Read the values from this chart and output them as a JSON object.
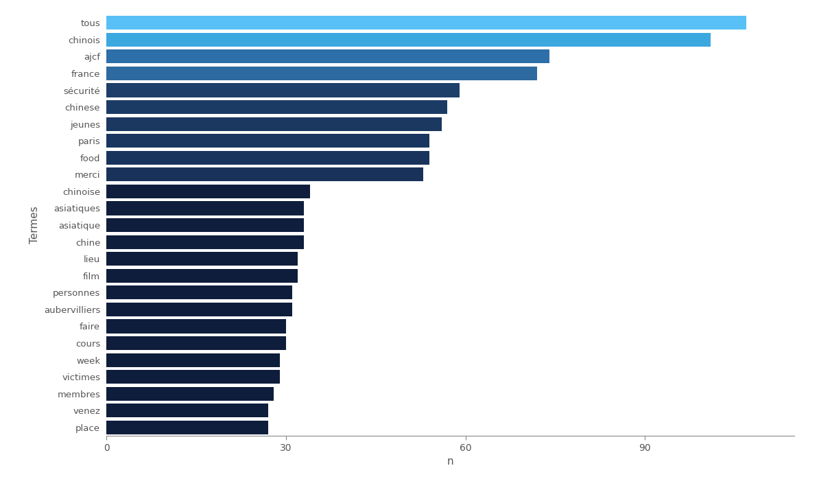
{
  "categories": [
    "tous",
    "chinois",
    "ajcf",
    "france",
    "sécurité",
    "chinese",
    "jeunes",
    "paris",
    "food",
    "merci",
    "chinoise",
    "asiatiques",
    "asiatique",
    "chine",
    "lieu",
    "film",
    "personnes",
    "aubervilliers",
    "faire",
    "cours",
    "week",
    "victimes",
    "membres",
    "venez",
    "place"
  ],
  "values": [
    107,
    101,
    74,
    72,
    59,
    57,
    56,
    54,
    54,
    53,
    34,
    33,
    33,
    33,
    32,
    32,
    31,
    31,
    30,
    30,
    29,
    29,
    28,
    27,
    27
  ],
  "colors": [
    "#58c0f5",
    "#3ca8e0",
    "#2d6fa8",
    "#2d6a9f",
    "#1e3f6a",
    "#1b3b65",
    "#1a3860",
    "#193660",
    "#19345c",
    "#19325a",
    "#0f1e3c",
    "#0f1e3c",
    "#0f1e3c",
    "#0f1e3c",
    "#0e1d3b",
    "#0e1d3b",
    "#0e1d3b",
    "#0e1d3b",
    "#0e1d3b",
    "#0e1d3b",
    "#0e1d3b",
    "#0e1d3b",
    "#0e1d3b",
    "#0e1d3b",
    "#0e1d3b"
  ],
  "xlabel": "n",
  "ylabel": "Termes",
  "xlim": [
    0,
    115
  ],
  "xticks": [
    0,
    30,
    60,
    90
  ],
  "background_color": "#ffffff",
  "bar_height": 0.82,
  "label_fontsize": 9.5,
  "tick_fontsize": 10
}
